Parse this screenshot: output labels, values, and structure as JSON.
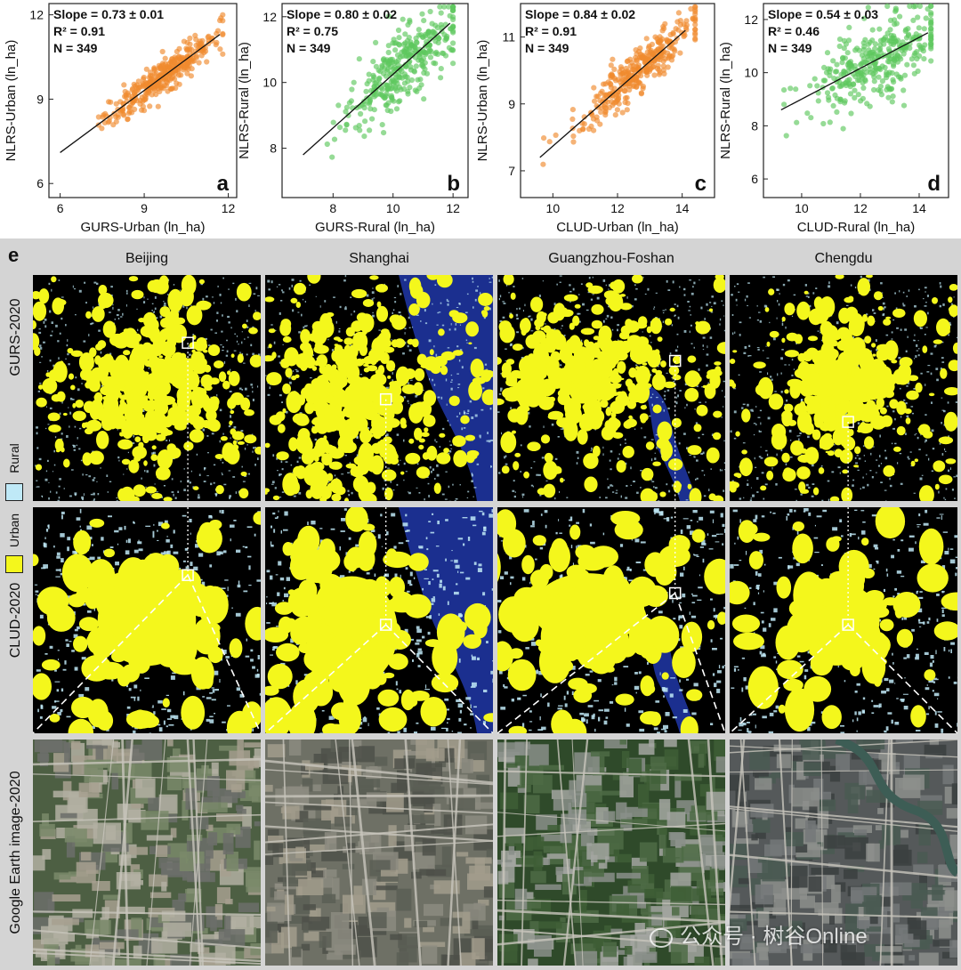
{
  "chart_data": [
    {
      "type": "scatter",
      "letter": "a",
      "xlabel": "GURS-Urban (ln_ha)",
      "ylabel": "NLRS-Urban (ln_ha)",
      "xlim": [
        5.6,
        12.3
      ],
      "ylim": [
        5.5,
        12.4
      ],
      "xticks": [
        6,
        9,
        12
      ],
      "yticks": [
        6,
        9,
        12
      ],
      "color": "#ef8a2e",
      "stats": [
        "Slope = 0.73 ± 0.01",
        "R² =  0.91",
        "N = 349"
      ],
      "trend_x": [
        6.0,
        11.7
      ],
      "trend_y": [
        7.1,
        11.3
      ],
      "cloud": {
        "n": 349,
        "x_mean": 9.6,
        "x_sd": 1.05,
        "x_min": 6.0,
        "x_max": 11.8,
        "slope": 0.73,
        "intercept": 2.75,
        "noise": 0.32
      }
    },
    {
      "type": "scatter",
      "letter": "b",
      "xlabel": "GURS-Rural (ln_ha)",
      "ylabel": "NLRS-Rural (ln_ha)",
      "xlim": [
        6.3,
        12.5
      ],
      "ylim": [
        6.5,
        12.4
      ],
      "xticks": [
        8,
        10,
        12
      ],
      "yticks": [
        8,
        10,
        12
      ],
      "color": "#5ec85e",
      "stats": [
        "Slope = 0.80 ± 0.02",
        "R² =  0.75",
        "N = 349"
      ],
      "trend_x": [
        7.0,
        11.9
      ],
      "trend_y": [
        7.8,
        11.8
      ],
      "cloud": {
        "n": 349,
        "x_mean": 10.3,
        "x_sd": 1.0,
        "x_min": 7.0,
        "x_max": 12.0,
        "slope": 0.8,
        "intercept": 2.2,
        "noise": 0.55
      }
    },
    {
      "type": "scatter",
      "letter": "c",
      "xlabel": "CLUD-Urban (ln_ha)",
      "ylabel": "NLRS-Urban (ln_ha)",
      "xlim": [
        9.0,
        15.0
      ],
      "ylim": [
        6.2,
        12.0
      ],
      "xticks": [
        10,
        12,
        14
      ],
      "yticks": [
        7,
        9,
        11
      ],
      "color": "#ef8a2e",
      "stats": [
        "Slope = 0.84 ± 0.02",
        "R² =  0.91",
        "N = 349"
      ],
      "trend_x": [
        9.6,
        14.1
      ],
      "trend_y": [
        7.4,
        11.2
      ],
      "cloud": {
        "n": 349,
        "x_mean": 12.6,
        "x_sd": 0.95,
        "x_min": 9.7,
        "x_max": 14.4,
        "slope": 0.84,
        "intercept": -0.64,
        "noise": 0.35
      }
    },
    {
      "type": "scatter",
      "letter": "d",
      "xlabel": "CLUD-Rural (ln_ha)",
      "ylabel": "NLRS-Rural (ln_ha)",
      "xlim": [
        8.7,
        15.0
      ],
      "ylim": [
        5.3,
        12.6
      ],
      "xticks": [
        10,
        12,
        14
      ],
      "yticks": [
        6,
        8,
        10,
        12
      ],
      "color": "#5ec85e",
      "stats": [
        "Slope = 0.54 ± 0.03",
        "R² =  0.46",
        "N = 349"
      ],
      "trend_x": [
        9.3,
        14.3
      ],
      "trend_y": [
        8.6,
        11.5
      ],
      "cloud": {
        "n": 349,
        "x_mean": 12.6,
        "x_sd": 1.1,
        "x_min": 9.4,
        "x_max": 14.4,
        "slope": 0.54,
        "intercept": 3.7,
        "noise": 0.75
      }
    }
  ],
  "map_figure": {
    "panel_letter": "e",
    "cities": [
      "Beijing",
      "Shanghai",
      "Guangzhou-Foshan",
      "Chengdu"
    ],
    "rows": [
      "GURS-2020",
      "CLUD-2020",
      "Google Earth image-2020"
    ],
    "legend": [
      {
        "label": "Rural",
        "color": "#bfe9f7"
      },
      {
        "label": "Urban",
        "color": "#f4f71c"
      }
    ],
    "colors": {
      "background": "#000000",
      "water": "#1b2f8f",
      "urban": "#f4f71c",
      "rural": "#bfe9f7"
    }
  },
  "watermark": "公众号 · 树谷Online"
}
